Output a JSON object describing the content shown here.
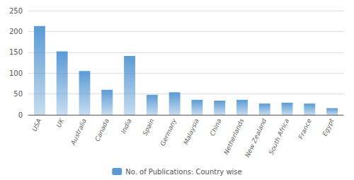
{
  "chart_data": {
    "type": "bar",
    "categories": [
      "USA",
      "UK",
      "Australia",
      "Canada",
      "India",
      "Spain",
      "Germany",
      "Malaysia",
      "China",
      "Netherlands",
      "New Zealand",
      "South Africa",
      "France",
      "Egypt"
    ],
    "series": [
      {
        "name": "No. of Publications: Country wise",
        "color": "#5b9bd5",
        "values": [
          213,
          152,
          105,
          60,
          141,
          48,
          54,
          36,
          34,
          36,
          27,
          29,
          27,
          16
        ]
      }
    ],
    "ylim": [
      0,
      250
    ],
    "yticks": [
      0,
      50,
      100,
      150,
      200,
      250
    ],
    "grid": true,
    "legend": "bottom"
  }
}
